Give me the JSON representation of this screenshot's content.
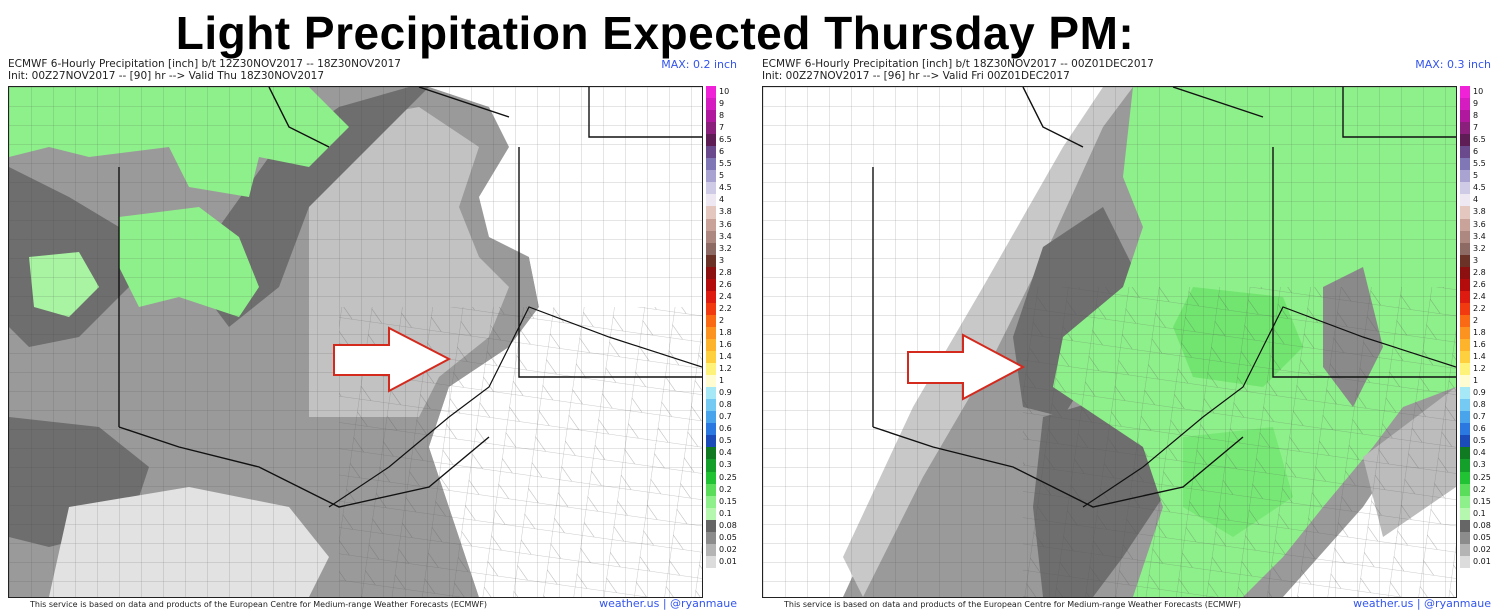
{
  "headline": "Light Precipitation Expected Thursday PM:",
  "panels": [
    {
      "header_line1": "ECMWF 6-Hourly Precipitation [inch] b/t 12Z30NOV2017 -- 18Z30NOV2017",
      "header_line2": "Init: 00Z27NOV2017 -- [90] hr --> Valid Thu 18Z30NOV2017",
      "max_label": "MAX: 0.2 inch",
      "footer": "This service is based on data and products of the European Centre for Medium-range Weather Forecasts (ECMWF)",
      "credit": "weather.us | @ryanmaue"
    },
    {
      "header_line1": "ECMWF 6-Hourly Precipitation [inch] b/t 18Z30NOV2017 -- 00Z01DEC2017",
      "header_line2": "Init: 00Z27NOV2017 -- [96] hr --> Valid Fri 00Z01DEC2017",
      "max_label": "MAX: 0.3 inch",
      "footer": "This service is based on data and products of the European Centre for Medium-range Weather Forecasts (ECMWF)",
      "credit": "weather.us | @ryanmaue"
    }
  ],
  "colorbar": [
    {
      "label": "10",
      "color": "#f022d8"
    },
    {
      "label": "9",
      "color": "#d41cc0"
    },
    {
      "label": "8",
      "color": "#b0189e"
    },
    {
      "label": "7",
      "color": "#8a1f7c"
    },
    {
      "label": "6.5",
      "color": "#5e1d55"
    },
    {
      "label": "6",
      "color": "#6a4a8c"
    },
    {
      "label": "5.5",
      "color": "#7f77b6"
    },
    {
      "label": "5",
      "color": "#a8a3d0"
    },
    {
      "label": "4.5",
      "color": "#cfcbe6"
    },
    {
      "label": "4",
      "color": "#ede8f2"
    },
    {
      "label": "3.8",
      "color": "#e4c8c0"
    },
    {
      "label": "3.6",
      "color": "#c9a39a"
    },
    {
      "label": "3.4",
      "color": "#ad8880"
    },
    {
      "label": "3.2",
      "color": "#8d6a63"
    },
    {
      "label": "3",
      "color": "#6b3228"
    },
    {
      "label": "2.8",
      "color": "#8c1010"
    },
    {
      "label": "2.6",
      "color": "#b40c0c"
    },
    {
      "label": "2.4",
      "color": "#de1b10"
    },
    {
      "label": "2.2",
      "color": "#f23a10"
    },
    {
      "label": "2",
      "color": "#fa6a14"
    },
    {
      "label": "1.8",
      "color": "#fc9220"
    },
    {
      "label": "1.6",
      "color": "#fdb42c"
    },
    {
      "label": "1.4",
      "color": "#fed040"
    },
    {
      "label": "1.2",
      "color": "#fff27a"
    },
    {
      "label": "1",
      "color": "#fffcd2"
    },
    {
      "label": "0.9",
      "color": "#a6e8f6"
    },
    {
      "label": "0.8",
      "color": "#74caf2"
    },
    {
      "label": "0.7",
      "color": "#4aa4ec"
    },
    {
      "label": "0.6",
      "color": "#2a78e0"
    },
    {
      "label": "0.5",
      "color": "#1a4bb8"
    },
    {
      "label": "0.4",
      "color": "#0f7a22"
    },
    {
      "label": "0.3",
      "color": "#149e2a"
    },
    {
      "label": "0.25",
      "color": "#22c235"
    },
    {
      "label": "0.2",
      "color": "#5add5a"
    },
    {
      "label": "0.15",
      "color": "#8ef08a"
    },
    {
      "label": "0.1",
      "color": "#b6f7b0"
    },
    {
      "label": "0.08",
      "color": "#666666"
    },
    {
      "label": "0.05",
      "color": "#8c8c8c"
    },
    {
      "label": "0.02",
      "color": "#b4b4b4"
    },
    {
      "label": "0.01",
      "color": "#dcdcdc"
    }
  ],
  "colors": {
    "green": "#8ef08a",
    "green_light": "#b6f7b0",
    "green_dark": "#5add5a",
    "gray_dark": "#6e6e6e",
    "gray_mid": "#999999",
    "gray_light": "#c4c4c4",
    "gray_pale": "#e0e0e0",
    "arrow_red": "#d42a1e",
    "link_blue": "#3355ee"
  }
}
